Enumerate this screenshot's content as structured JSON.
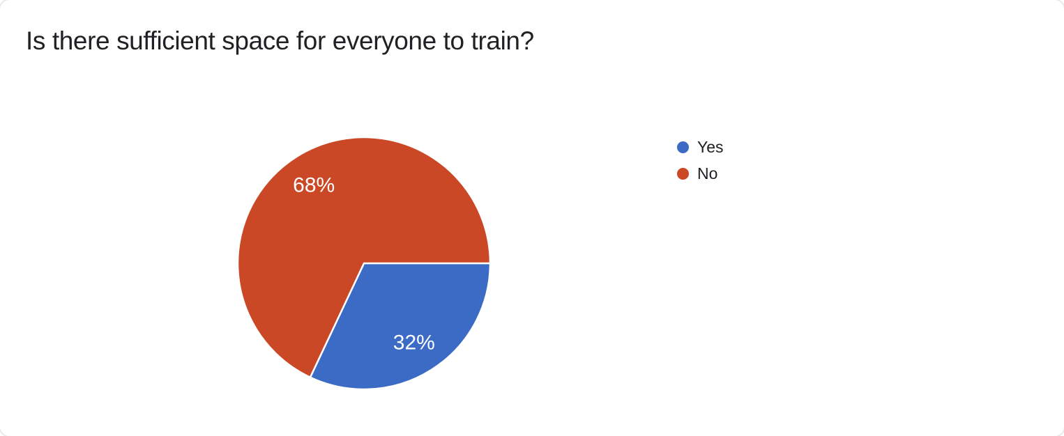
{
  "page": {
    "title": "Is there sufficient space for everyone to train?"
  },
  "colors": {
    "text": "#202124",
    "slice_label": "#ffffff",
    "slice_border": "#ffffff",
    "card_background": "#ffffff",
    "yes_blue": "#3C6BC6",
    "no_red": "#CB4827"
  },
  "chart_data": {
    "type": "pie",
    "title": "Is there sufficient space for everyone to train?",
    "slices": [
      {
        "label": "Yes",
        "value": 32,
        "percent_label": "32%",
        "color": "#3C6BC6"
      },
      {
        "label": "No",
        "value": 68,
        "percent_label": "68%",
        "color": "#CB4827"
      }
    ],
    "start_angle_deg": 0,
    "direction": "clockwise",
    "labels": "percent-inside",
    "legend_position": "right",
    "legend_entries": [
      "Yes",
      "No"
    ]
  }
}
